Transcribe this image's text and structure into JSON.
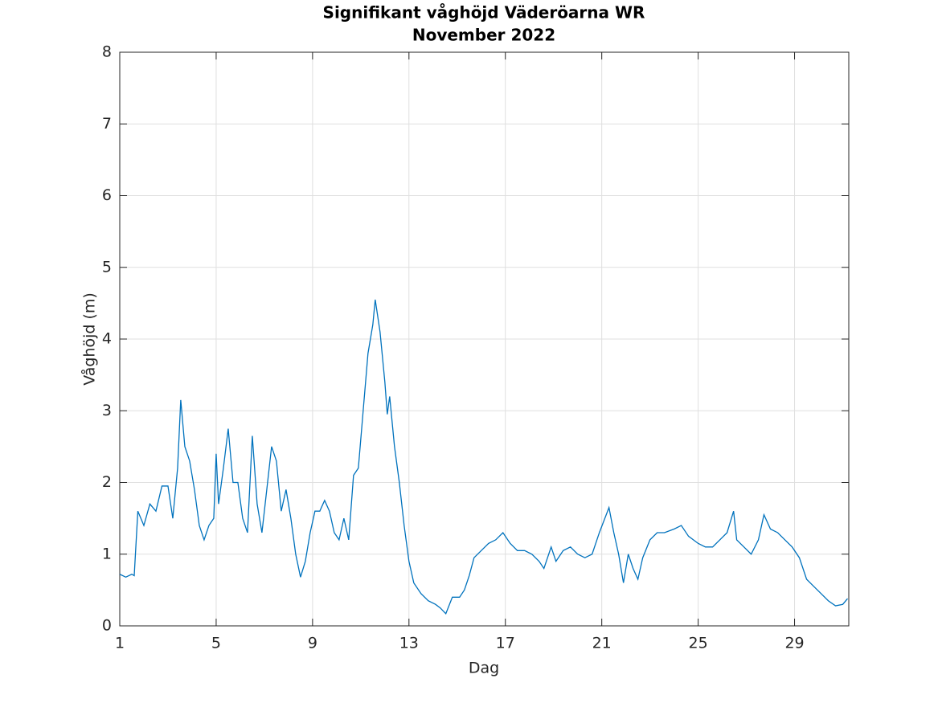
{
  "chart_data": {
    "type": "line",
    "title": [
      "Signifikant våghöjd Väderöarna WR",
      "November 2022"
    ],
    "x_label": "Dag",
    "y_label": "Våghöjd (m)",
    "xlim": [
      1,
      31.25
    ],
    "xticks": [
      1,
      5,
      9,
      13,
      17,
      21,
      25,
      29
    ],
    "ylim": [
      0,
      8
    ],
    "yticks": [
      0,
      1,
      2,
      3,
      4,
      5,
      6,
      7,
      8
    ],
    "grid": true,
    "x": [
      1.0,
      1.25,
      1.5,
      1.6,
      1.75,
      2.0,
      2.25,
      2.5,
      2.75,
      3.0,
      3.2,
      3.4,
      3.53,
      3.7,
      3.9,
      4.1,
      4.3,
      4.5,
      4.7,
      4.9,
      5.0,
      5.1,
      5.3,
      5.5,
      5.7,
      5.9,
      6.1,
      6.3,
      6.5,
      6.7,
      6.9,
      7.1,
      7.3,
      7.5,
      7.7,
      7.9,
      8.1,
      8.3,
      8.5,
      8.7,
      8.9,
      9.1,
      9.3,
      9.5,
      9.7,
      9.9,
      10.1,
      10.3,
      10.5,
      10.7,
      10.9,
      11.1,
      11.3,
      11.5,
      11.6,
      11.8,
      12.0,
      12.1,
      12.2,
      12.4,
      12.6,
      12.8,
      13.0,
      13.2,
      13.5,
      13.8,
      14.1,
      14.3,
      14.53,
      14.8,
      15.1,
      15.3,
      15.5,
      15.7,
      16.0,
      16.3,
      16.6,
      16.9,
      17.2,
      17.5,
      17.8,
      18.1,
      18.4,
      18.6,
      18.9,
      19.1,
      19.4,
      19.7,
      20.0,
      20.3,
      20.6,
      20.9,
      21.3,
      21.5,
      21.7,
      21.9,
      22.1,
      22.3,
      22.5,
      22.7,
      23.0,
      23.3,
      23.6,
      24.0,
      24.3,
      24.6,
      25.0,
      25.3,
      25.6,
      25.9,
      26.2,
      26.47,
      26.6,
      26.9,
      27.2,
      27.5,
      27.73,
      28.0,
      28.3,
      28.6,
      28.9,
      29.2,
      29.5,
      29.8,
      30.1,
      30.4,
      30.7,
      31.0,
      31.2
    ],
    "series": [
      {
        "name": "Våghöjd",
        "color": "#0072bd",
        "values": [
          0.72,
          0.68,
          0.72,
          0.7,
          1.6,
          1.4,
          1.7,
          1.6,
          1.95,
          1.95,
          1.5,
          2.2,
          3.15,
          2.5,
          2.3,
          1.9,
          1.4,
          1.2,
          1.4,
          1.5,
          2.4,
          1.7,
          2.2,
          2.75,
          2.0,
          2.0,
          1.5,
          1.3,
          2.65,
          1.7,
          1.3,
          1.9,
          2.5,
          2.3,
          1.6,
          1.9,
          1.5,
          1.0,
          0.68,
          0.9,
          1.3,
          1.6,
          1.6,
          1.75,
          1.6,
          1.3,
          1.2,
          1.5,
          1.2,
          2.1,
          2.2,
          3.0,
          3.8,
          4.2,
          4.55,
          4.1,
          3.4,
          2.95,
          3.2,
          2.5,
          2.0,
          1.4,
          0.9,
          0.6,
          0.45,
          0.35,
          0.3,
          0.25,
          0.17,
          0.4,
          0.4,
          0.5,
          0.7,
          0.95,
          1.05,
          1.15,
          1.2,
          1.3,
          1.15,
          1.05,
          1.05,
          1.0,
          0.9,
          0.8,
          1.1,
          0.9,
          1.05,
          1.1,
          1.0,
          0.95,
          1.0,
          1.3,
          1.65,
          1.3,
          1.0,
          0.6,
          1.0,
          0.8,
          0.65,
          0.95,
          1.2,
          1.3,
          1.3,
          1.35,
          1.4,
          1.25,
          1.15,
          1.1,
          1.1,
          1.2,
          1.3,
          1.6,
          1.2,
          1.1,
          1.0,
          1.2,
          1.55,
          1.35,
          1.3,
          1.2,
          1.1,
          0.95,
          0.65,
          0.55,
          0.45,
          0.35,
          0.28,
          0.3,
          0.38
        ]
      }
    ]
  }
}
